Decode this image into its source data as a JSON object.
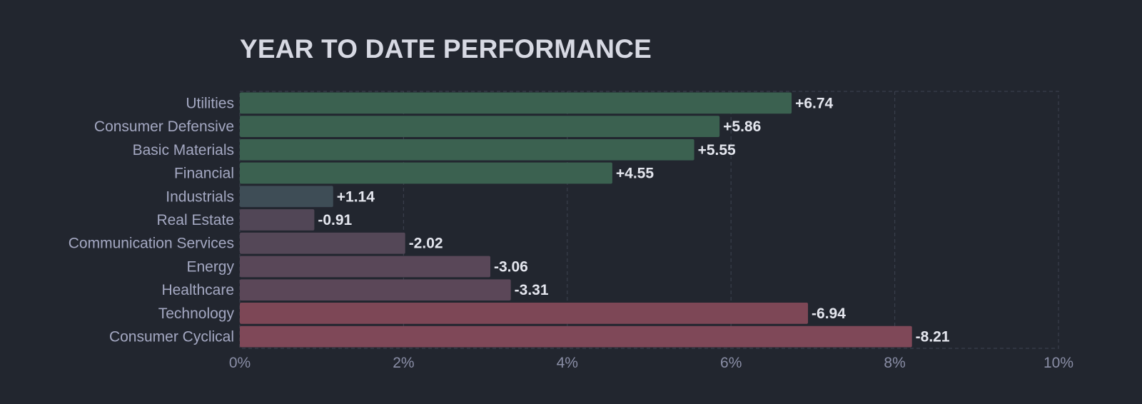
{
  "title": "YEAR TO DATE PERFORMANCE",
  "chart_data": {
    "type": "bar",
    "orientation": "horizontal",
    "title": "YEAR TO DATE PERFORMANCE",
    "xlabel": "",
    "ylabel": "",
    "categories": [
      "Utilities",
      "Consumer Defensive",
      "Basic Materials",
      "Financial",
      "Industrials",
      "Real Estate",
      "Communication Services",
      "Energy",
      "Healthcare",
      "Technology",
      "Consumer Cyclical"
    ],
    "values": [
      6.74,
      5.86,
      5.55,
      4.55,
      1.14,
      -0.91,
      -2.02,
      -3.06,
      -3.31,
      -6.94,
      -8.21
    ],
    "value_labels": [
      "+6.74",
      "+5.86",
      "+5.55",
      "+4.55",
      "+1.14",
      "-0.91",
      "-2.02",
      "-3.06",
      "-3.31",
      "-6.94",
      "-8.21"
    ],
    "bar_length": "absolute value",
    "xlim": [
      0,
      10
    ],
    "xticks": [
      0,
      2,
      4,
      6,
      8,
      10
    ],
    "xtick_labels": [
      "0%",
      "2%",
      "4%",
      "6%",
      "8%",
      "10%"
    ],
    "grid": true,
    "bar_colors": [
      "#3b6150",
      "#3b6150",
      "#3b6150",
      "#3b6150",
      "#3e4d56",
      "#514656",
      "#544757",
      "#594758",
      "#5b4758",
      "#7d4756",
      "#7f4858"
    ],
    "legend": false
  }
}
